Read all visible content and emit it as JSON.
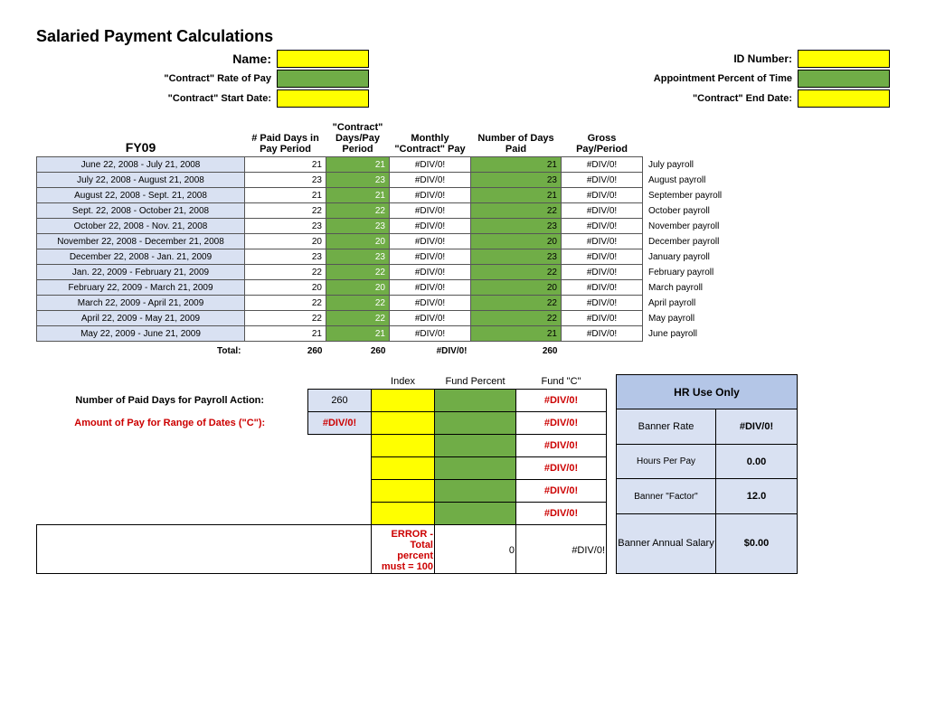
{
  "title": "Salaried Payment Calculations",
  "header": {
    "name_label": "Name:",
    "id_label": "ID Number:",
    "rate_label": "\"Contract\" Rate of Pay",
    "apt_label": "Appointment Percent of Time",
    "start_label": "\"Contract\" Start Date:",
    "end_label": "\"Contract\" End Date:"
  },
  "columns": {
    "fy": "FY09",
    "c1": "# Paid Days in Pay Period",
    "c2": "\"Contract\" Days/Pay Period",
    "c3": "Monthly \"Contract\" Pay",
    "c4": "Number of Days Paid",
    "c5": "Gross Pay/Period"
  },
  "rows": [
    {
      "period": "June 22, 2008 - July 21, 2008",
      "paid": "21",
      "cdays": "21",
      "mpay": "#DIV/0!",
      "ndays": "21",
      "gross": "#DIV/0!",
      "note": "July payroll"
    },
    {
      "period": "July 22, 2008 - August 21, 2008",
      "paid": "23",
      "cdays": "23",
      "mpay": "#DIV/0!",
      "ndays": "23",
      "gross": "#DIV/0!",
      "note": "August payroll"
    },
    {
      "period": "August 22, 2008 - Sept. 21, 2008",
      "paid": "21",
      "cdays": "21",
      "mpay": "#DIV/0!",
      "ndays": "21",
      "gross": "#DIV/0!",
      "note": "September payroll"
    },
    {
      "period": "Sept. 22, 2008 - October 21, 2008",
      "paid": "22",
      "cdays": "22",
      "mpay": "#DIV/0!",
      "ndays": "22",
      "gross": "#DIV/0!",
      "note": "October payroll"
    },
    {
      "period": "October 22, 2008 - Nov. 21, 2008",
      "paid": "23",
      "cdays": "23",
      "mpay": "#DIV/0!",
      "ndays": "23",
      "gross": "#DIV/0!",
      "note": "November payroll"
    },
    {
      "period": "November 22, 2008 - December 21, 2008",
      "paid": "20",
      "cdays": "20",
      "mpay": "#DIV/0!",
      "ndays": "20",
      "gross": "#DIV/0!",
      "note": "December payroll"
    },
    {
      "period": "December 22, 2008 - Jan. 21, 2009",
      "paid": "23",
      "cdays": "23",
      "mpay": "#DIV/0!",
      "ndays": "23",
      "gross": "#DIV/0!",
      "note": "January payroll"
    },
    {
      "period": "Jan. 22, 2009 - February 21, 2009",
      "paid": "22",
      "cdays": "22",
      "mpay": "#DIV/0!",
      "ndays": "22",
      "gross": "#DIV/0!",
      "note": "February payroll"
    },
    {
      "period": "February 22, 2009 - March 21, 2009",
      "paid": "20",
      "cdays": "20",
      "mpay": "#DIV/0!",
      "ndays": "20",
      "gross": "#DIV/0!",
      "note": "March payroll"
    },
    {
      "period": "March 22, 2009 - April 21, 2009",
      "paid": "22",
      "cdays": "22",
      "mpay": "#DIV/0!",
      "ndays": "22",
      "gross": "#DIV/0!",
      "note": "April payroll"
    },
    {
      "period": "April 22, 2009 - May 21, 2009",
      "paid": "22",
      "cdays": "22",
      "mpay": "#DIV/0!",
      "ndays": "22",
      "gross": "#DIV/0!",
      "note": "May payroll"
    },
    {
      "period": "May 22, 2009 - June 21, 2009",
      "paid": "21",
      "cdays": "21",
      "mpay": "#DIV/0!",
      "ndays": "21",
      "gross": "#DIV/0!",
      "note": "June payroll"
    }
  ],
  "totals": {
    "label": "Total:",
    "paid": "260",
    "cdays": "260",
    "mpay": "#DIV/0!",
    "ndays": "260"
  },
  "fund": {
    "h_index": "Index",
    "h_percent": "Fund Percent",
    "h_c": "Fund \"C\"",
    "row1_label": "Number of Paid Days for Payroll Action:",
    "row1_val": "260",
    "row2_label": "Amount of Pay for Range of Dates (\"C\"):",
    "row2_val": "#DIV/0!",
    "c_vals": [
      "#DIV/0!",
      "#DIV/0!",
      "#DIV/0!",
      "#DIV/0!",
      "#DIV/0!",
      "#DIV/0!"
    ],
    "err_label": "ERROR - Total percent must = 100",
    "err_percent": "0",
    "err_c": "#DIV/0!"
  },
  "hr": {
    "title": "HR Use Only",
    "r1l": "Banner Rate",
    "r1v": "#DIV/0!",
    "r2l": "Hours Per Pay",
    "r2v": "0.00",
    "r3l": "Banner \"Factor\"",
    "r3v": "12.0",
    "r4l": "Banner Annual Salary",
    "r4v": "$0.00"
  },
  "colors": {
    "yellow": "#ffff00",
    "green": "#70ad47",
    "lblue": "#d9e1f2",
    "lblue2": "#b4c6e7"
  },
  "col_widths": {
    "period": 230,
    "paid": 90,
    "cdays": 70,
    "mpay": 90,
    "ndays": 100,
    "gross": 90,
    "note": 110
  }
}
